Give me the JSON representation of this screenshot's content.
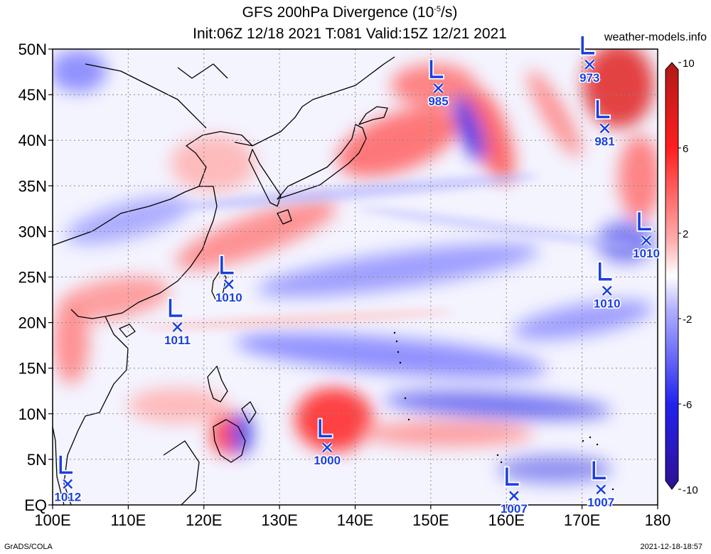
{
  "title_line1": "GFS 200hPa Divergence (10",
  "title_exp": "-5",
  "title_unit_tail": "/s)",
  "title_line2": "Init:06Z 12/18 2021 T:081 Valid:15Z 12/21 2021",
  "watermark": "weather-models.info",
  "footer_left": "GrADS/COLA",
  "footer_right": "2021-12-18-18:57",
  "map": {
    "lon_range": [
      100,
      180
    ],
    "lat_range": [
      0,
      50
    ],
    "lon_labels": [
      "100E",
      "110E",
      "120E",
      "130E",
      "140E",
      "150E",
      "160E",
      "170E",
      "180"
    ],
    "lat_labels": [
      "EQ",
      "5N",
      "10N",
      "15N",
      "20N",
      "25N",
      "30N",
      "35N",
      "40N",
      "45N",
      "50N"
    ]
  },
  "colorbar": {
    "labels": [
      "10",
      "6",
      "2",
      "-2",
      "-6",
      "-10"
    ],
    "values": [
      10,
      6,
      2,
      -2,
      -6,
      -10
    ],
    "colors": {
      "max": "#b01818",
      "pos": "#ff1e1e",
      "zero": "#ffffff",
      "neg": "#2222ee",
      "min": "#301090"
    }
  },
  "lows": [
    {
      "lon": 151.0,
      "lat": 45.7,
      "pressure": "985"
    },
    {
      "lon": 171.0,
      "lat": 48.3,
      "pressure": "973"
    },
    {
      "lon": 173.0,
      "lat": 41.3,
      "pressure": "981"
    },
    {
      "lon": 178.5,
      "lat": 29.0,
      "pressure": "1010"
    },
    {
      "lon": 173.3,
      "lat": 23.5,
      "pressure": "1010"
    },
    {
      "lon": 123.3,
      "lat": 24.2,
      "pressure": "1010"
    },
    {
      "lon": 116.5,
      "lat": 19.5,
      "pressure": "1011"
    },
    {
      "lon": 136.3,
      "lat": 6.3,
      "pressure": "1000"
    },
    {
      "lon": 102.0,
      "lat": 2.3,
      "pressure": "1012"
    },
    {
      "lon": 161.0,
      "lat": 1.0,
      "pressure": "1007"
    },
    {
      "lon": 172.5,
      "lat": 1.7,
      "pressure": "1007"
    }
  ]
}
